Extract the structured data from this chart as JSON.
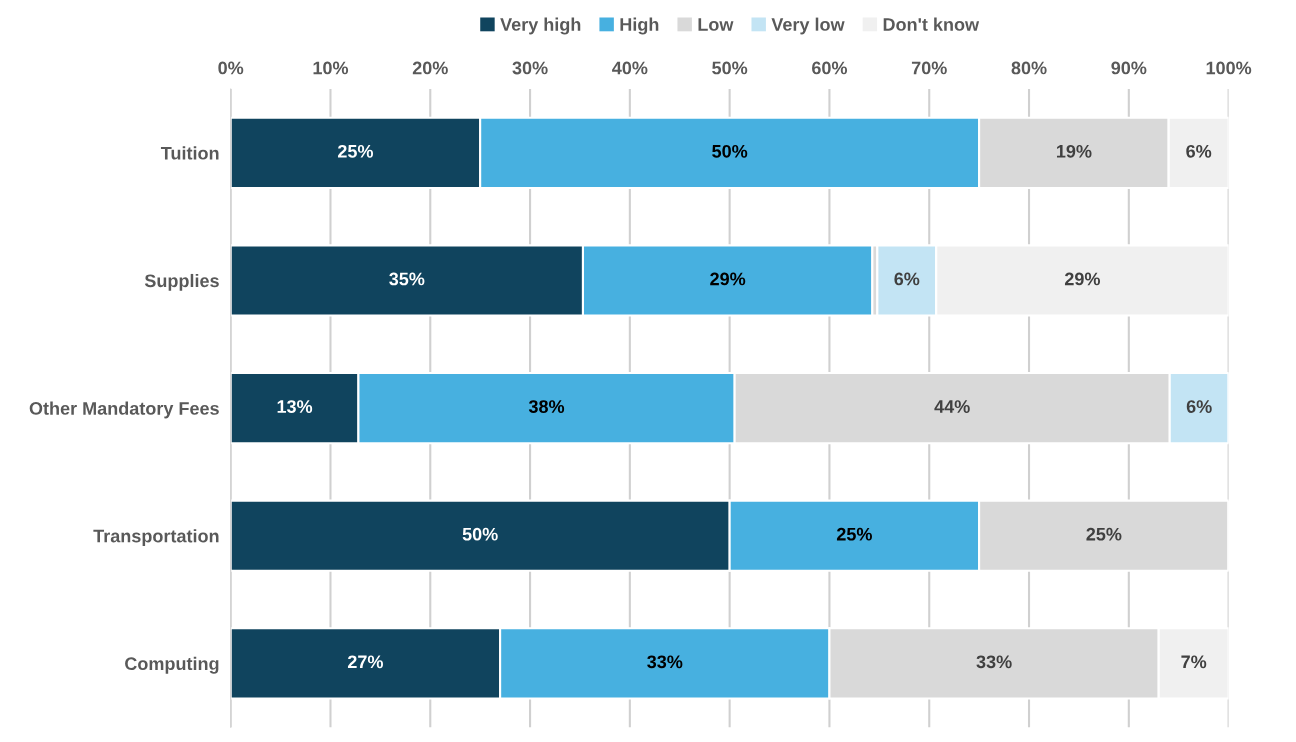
{
  "chart_data": {
    "type": "bar",
    "orientation": "horizontal",
    "stacked": true,
    "categories": [
      "Tuition",
      "Supplies",
      "Other Mandatory Fees",
      "Transportation",
      "Computing"
    ],
    "series": [
      {
        "name": "Very high",
        "color": "#10445e",
        "values": [
          25,
          35.3,
          12.8,
          50,
          27
        ],
        "value_labels": [
          "25%",
          "35%",
          "13%",
          "50%",
          "27%"
        ]
      },
      {
        "name": "High",
        "color": "#47b0e0",
        "values": [
          50,
          29.0,
          37.7,
          25,
          33
        ],
        "value_labels": [
          "50%",
          "29%",
          "38%",
          "25%",
          "33%"
        ]
      },
      {
        "name": "Low",
        "color": "#d9d9d9",
        "values": [
          19,
          0.5,
          43.6,
          25,
          33
        ],
        "value_labels": [
          "19%",
          null,
          "44%",
          "25%",
          "33%"
        ]
      },
      {
        "name": "Very low",
        "color": "#c3e4f4",
        "values": [
          0,
          5.9,
          5.9,
          0,
          0
        ],
        "value_labels": [
          null,
          "6%",
          "6%",
          null,
          null
        ]
      },
      {
        "name": "Don't know",
        "color": "#f0f0f0",
        "values": [
          6,
          29.3,
          0,
          0,
          7
        ],
        "value_labels": [
          "6%",
          "29%",
          null,
          null,
          "7%"
        ]
      }
    ],
    "xlim": [
      0,
      100
    ],
    "xticks": [
      {
        "value": 0,
        "label": "0%"
      },
      {
        "value": 10,
        "label": "10%"
      },
      {
        "value": 20,
        "label": "20%"
      },
      {
        "value": 30,
        "label": "30%"
      },
      {
        "value": 40,
        "label": "40%"
      },
      {
        "value": 50,
        "label": "50%"
      },
      {
        "value": 60,
        "label": "60%"
      },
      {
        "value": 70,
        "label": "70%"
      },
      {
        "value": 80,
        "label": "80%"
      },
      {
        "value": 90,
        "label": "90%"
      },
      {
        "value": 100,
        "label": "100%"
      }
    ],
    "grid": "x",
    "legend": "top"
  }
}
